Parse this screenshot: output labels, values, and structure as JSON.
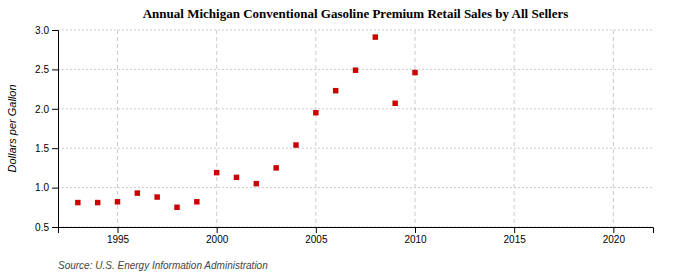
{
  "chart_data": {
    "type": "scatter",
    "title": "Annual Michigan Conventional Gasoline Premium Retail Sales by All Sellers",
    "ylabel": "Dollars per Gallon",
    "annotation": "Source: U.S. Energy Information Administration",
    "x": [
      1993,
      1994,
      1995,
      1996,
      1997,
      1998,
      1999,
      2000,
      2001,
      2002,
      2003,
      2004,
      2005,
      2006,
      2007,
      2008,
      2009,
      2010
    ],
    "values": [
      0.81,
      0.81,
      0.82,
      0.93,
      0.88,
      0.75,
      0.82,
      1.19,
      1.13,
      1.05,
      1.25,
      1.54,
      1.95,
      2.23,
      2.49,
      2.91,
      2.07,
      2.46
    ],
    "color": "#cc0000",
    "marker": "square",
    "xlim": [
      1992,
      2022
    ],
    "ylim": [
      0.5,
      3.0
    ],
    "xticks": [
      1995,
      2000,
      2005,
      2010,
      2015,
      2020
    ],
    "yticks": [
      0.5,
      {
        "value": 1.0,
        "label": "1.0"
      },
      1.5,
      {
        "value": 2.0,
        "label": "2.0"
      },
      2.5,
      {
        "value": 3.0,
        "label": "3.0"
      }
    ],
    "grid": true
  }
}
